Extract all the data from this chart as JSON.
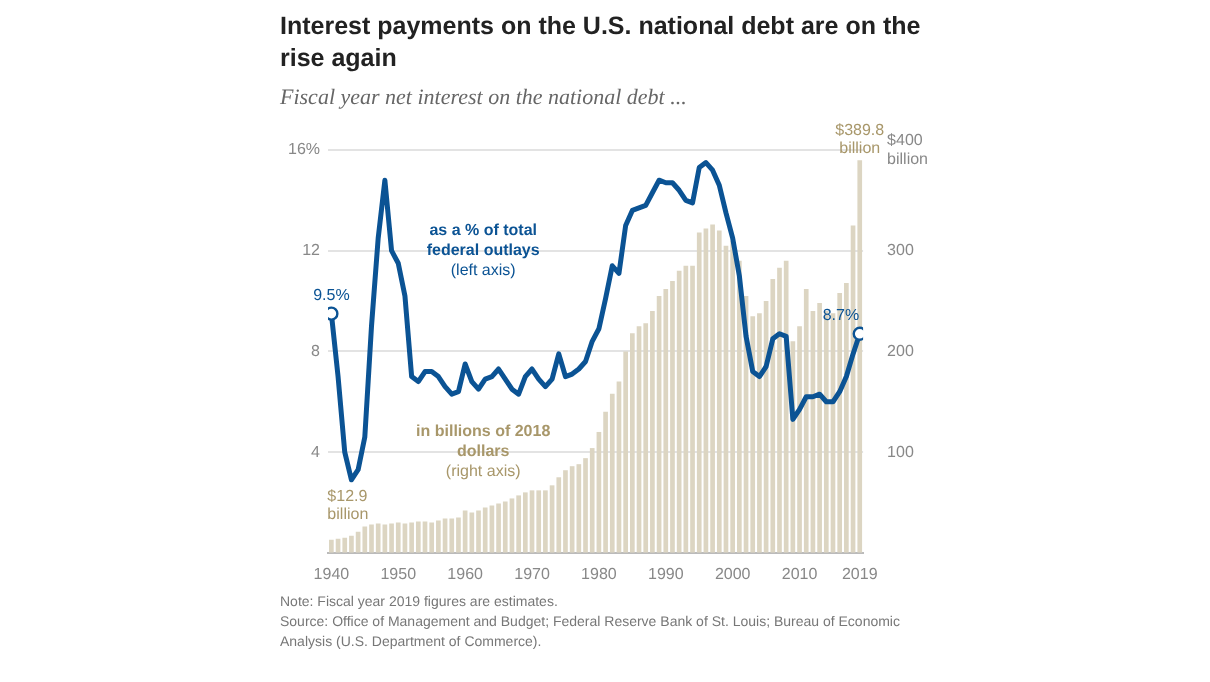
{
  "chart_data": {
    "type": "bar",
    "title": "Interest payments on the U.S. national debt are on the rise again",
    "subtitle": "Fiscal year net interest on the national debt ...",
    "x": [
      1940,
      1941,
      1942,
      1943,
      1944,
      1945,
      1946,
      1947,
      1948,
      1949,
      1950,
      1951,
      1952,
      1953,
      1954,
      1955,
      1956,
      1957,
      1958,
      1959,
      1960,
      1961,
      1962,
      1963,
      1964,
      1965,
      1966,
      1967,
      1968,
      1969,
      1970,
      1971,
      1972,
      1973,
      1974,
      1975,
      1976,
      1977,
      1978,
      1979,
      1980,
      1981,
      1982,
      1983,
      1984,
      1985,
      1986,
      1987,
      1988,
      1989,
      1990,
      1991,
      1992,
      1993,
      1994,
      1995,
      1996,
      1997,
      1998,
      1999,
      2000,
      2001,
      2002,
      2003,
      2004,
      2005,
      2006,
      2007,
      2008,
      2009,
      2010,
      2011,
      2012,
      2013,
      2014,
      2015,
      2016,
      2017,
      2018,
      2019
    ],
    "series": [
      {
        "name": "in billions of 2018 dollars (right axis)",
        "axis": "y2",
        "color": "#dcd5c2",
        "values": [
          12.9,
          14,
          15,
          17,
          21,
          26,
          28,
          29,
          28,
          29,
          30,
          29,
          30,
          31,
          31,
          30,
          32,
          34,
          34,
          35,
          42,
          40,
          42,
          45,
          47,
          49,
          51,
          54,
          57,
          60,
          62,
          62,
          62,
          67,
          75,
          82,
          86,
          88,
          94,
          104,
          120,
          140,
          158,
          170,
          200,
          218,
          225,
          228,
          240,
          255,
          262,
          270,
          280,
          285,
          285,
          318,
          322,
          326,
          320,
          305,
          310,
          290,
          255,
          235,
          238,
          250,
          272,
          283,
          290,
          210,
          225,
          262,
          240,
          248,
          240,
          238,
          258,
          268,
          325,
          389.8
        ],
        "value_labels": [
          "$12.9 billion",
          null,
          null,
          null,
          null,
          null,
          null,
          null,
          null,
          null,
          null,
          null,
          null,
          null,
          null,
          null,
          null,
          null,
          null,
          null,
          null,
          null,
          null,
          null,
          null,
          null,
          null,
          null,
          null,
          null,
          null,
          null,
          null,
          null,
          null,
          null,
          null,
          null,
          null,
          null,
          null,
          null,
          null,
          null,
          null,
          null,
          null,
          null,
          null,
          null,
          null,
          null,
          null,
          null,
          null,
          null,
          null,
          null,
          null,
          null,
          null,
          null,
          null,
          null,
          null,
          null,
          null,
          null,
          null,
          null,
          null,
          null,
          null,
          null,
          null,
          null,
          null,
          null,
          null,
          "$389.8 billion"
        ]
      },
      {
        "name": "as a % of total federal outlays (left axis)",
        "type": "line",
        "color": "#0b5394",
        "values": [
          9.5,
          7,
          4,
          2.9,
          3.3,
          4.6,
          9,
          12.5,
          14.8,
          12,
          11.5,
          10.2,
          7,
          6.8,
          7.2,
          7.2,
          7.0,
          6.6,
          6.3,
          6.4,
          7.5,
          6.8,
          6.5,
          6.9,
          7.0,
          7.3,
          6.9,
          6.5,
          6.3,
          7.0,
          7.3,
          6.9,
          6.6,
          6.9,
          7.9,
          7.0,
          7.1,
          7.3,
          7.6,
          8.4,
          8.9,
          10.1,
          11.4,
          11.1,
          13.0,
          13.6,
          13.7,
          13.8,
          14.3,
          14.8,
          14.7,
          14.7,
          14.4,
          14.0,
          13.9,
          15.3,
          15.5,
          15.2,
          14.6,
          13.5,
          12.5,
          11.0,
          8.6,
          7.2,
          7.0,
          7.4,
          8.5,
          8.7,
          8.6,
          5.3,
          5.7,
          6.2,
          6.2,
          6.3,
          6.0,
          6.0,
          6.4,
          7.0,
          7.9,
          8.7
        ],
        "value_labels": [
          "9.5%",
          null,
          null,
          null,
          null,
          null,
          null,
          null,
          null,
          null,
          null,
          null,
          null,
          null,
          null,
          null,
          null,
          null,
          null,
          null,
          null,
          null,
          null,
          null,
          null,
          null,
          null,
          null,
          null,
          null,
          null,
          null,
          null,
          null,
          null,
          null,
          null,
          null,
          null,
          null,
          null,
          null,
          null,
          null,
          null,
          null,
          null,
          null,
          null,
          null,
          null,
          null,
          null,
          null,
          null,
          null,
          null,
          null,
          null,
          null,
          null,
          null,
          null,
          null,
          null,
          null,
          null,
          null,
          null,
          null,
          null,
          null,
          null,
          null,
          null,
          null,
          null,
          null,
          null,
          "8.7%"
        ]
      }
    ],
    "xlim": [
      1939.5,
      2019.5
    ],
    "xticks": [
      1940,
      1950,
      1960,
      1970,
      1980,
      1990,
      2000,
      2010,
      2019
    ],
    "ylim": [
      0,
      16
    ],
    "yticks": [
      {
        "value": 4,
        "label": "4"
      },
      {
        "value": 8,
        "label": "8"
      },
      {
        "value": 12,
        "label": "12"
      },
      {
        "value": 16,
        "label": "16%"
      }
    ],
    "y2lim": [
      0,
      400
    ],
    "y2ticks": [
      100,
      200,
      300,
      {
        "value": 400,
        "label": "$400 billion"
      }
    ],
    "grid": "y",
    "legend": false,
    "annotations": [
      "Note: Fiscal year 2019 figures are estimates.",
      "Source: Office of Management and Budget; Federal Reserve Bank of St. Louis; Bureau of Economic Analysis (U.S. Department of Commerce)."
    ]
  }
}
